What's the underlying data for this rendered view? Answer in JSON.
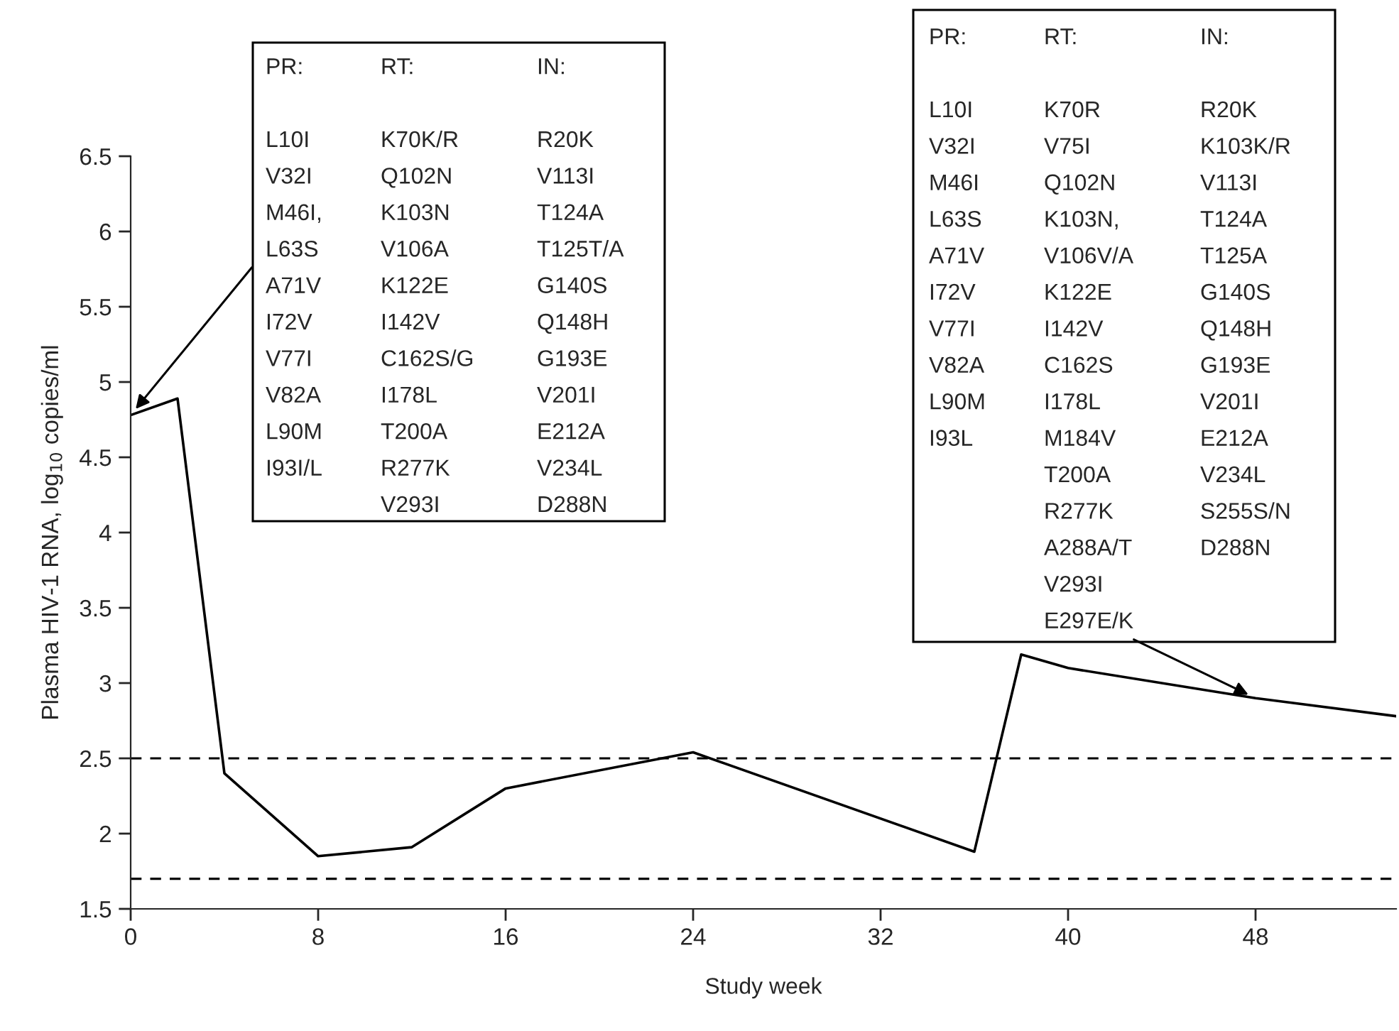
{
  "chart_data": {
    "type": "line",
    "xlabel": "Study week",
    "ylabel": "Plasma HIV-1 RNA, log$_{10}$ copies/ml",
    "x": [
      0,
      2,
      4,
      8,
      12,
      16,
      24,
      36,
      38,
      40,
      48,
      54
    ],
    "series": [
      {
        "color": "#000000",
        "values": [
          4.78,
          4.89,
          2.4,
          1.85,
          1.91,
          2.3,
          2.54,
          1.88,
          3.19,
          3.1,
          2.9,
          2.78
        ]
      }
    ],
    "xlim": [
      0,
      54
    ],
    "xticks": [
      0,
      8,
      16,
      24,
      32,
      40,
      48
    ],
    "ylim": [
      1.5,
      6.5
    ],
    "yticks": [
      1.5,
      2,
      2.5,
      3,
      3.5,
      4,
      4.5,
      5,
      5.5,
      6,
      6.5
    ],
    "ref_lines": [
      {
        "axis": "y",
        "value": 2.5,
        "line_style": "dashed",
        "color": "#000000"
      },
      {
        "axis": "y",
        "value": 1.7,
        "line_style": "dashed",
        "color": "#000000"
      }
    ],
    "annotations": [
      "PR:",
      "L10I",
      "V32I",
      "M46I,",
      {
        "text": "L63S",
        "x": 0,
        "y": 4.78
      },
      "A71V",
      "I72V",
      "V77I",
      "V82A",
      "L90M",
      "I93I/L",
      "RT:",
      "K70K/R",
      "Q102N",
      "K103N",
      "V106A",
      "K122E",
      "I142V",
      "C162S/G",
      "I178L",
      "T200A",
      "R277K",
      "V293I",
      "IN:",
      "R20K",
      "V113I",
      "T124A",
      "T125T/A",
      "G140S",
      "Q148H",
      "G193E",
      "V201I",
      "E212A",
      "V234L",
      "D288N",
      "PR:",
      "L10I",
      "V32I",
      "M46I",
      "L63S",
      "A71V",
      "I72V",
      "V77I",
      "V82A",
      "L90M",
      "I93L",
      "RT:",
      "K70R",
      "V75I",
      "Q102N",
      "K103N,",
      "V106V/A",
      "K122E",
      "I142V",
      "C162S",
      "I178L",
      "M184V",
      "T200A",
      "R277K",
      "A288A/T",
      "V293I",
      {
        "text": "E297E/K",
        "x": 48,
        "y": 2.9
      },
      "IN:",
      "R20K",
      "K103K/R",
      "V113I",
      "T124A",
      "T125A",
      "G140S",
      "Q148H",
      "G193E",
      "V201I",
      "E212A",
      "V234L",
      "S255S/N",
      "D288N"
    ],
    "marker": "none",
    "line_style": "solid",
    "grid": false,
    "legend": false
  }
}
